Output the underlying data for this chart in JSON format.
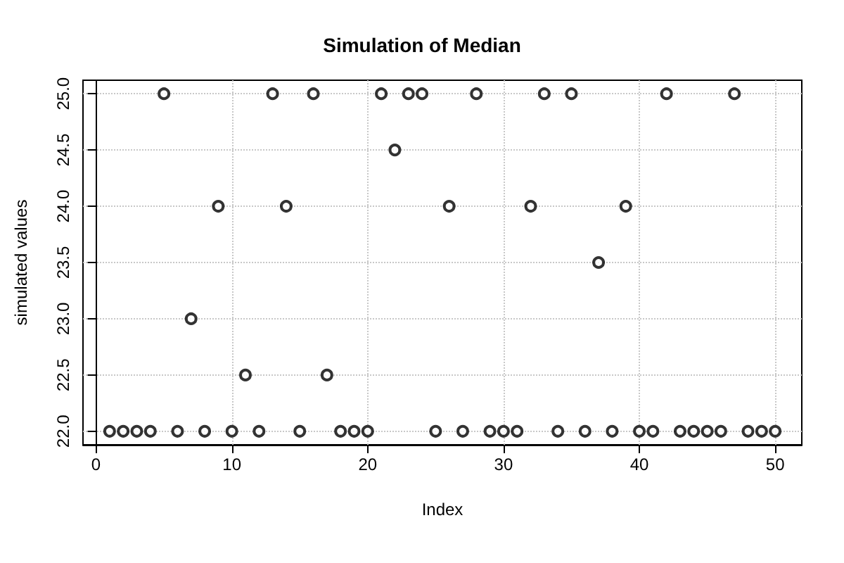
{
  "chart_data": {
    "type": "scatter",
    "title": "Simulation of Median",
    "xlabel": "Index",
    "ylabel": "simulated values",
    "x": [
      1,
      2,
      3,
      4,
      5,
      6,
      7,
      8,
      9,
      10,
      11,
      12,
      13,
      14,
      15,
      16,
      17,
      18,
      19,
      20,
      21,
      22,
      23,
      24,
      25,
      26,
      27,
      28,
      29,
      30,
      31,
      32,
      33,
      34,
      35,
      36,
      37,
      38,
      39,
      40,
      41,
      42,
      43,
      44,
      45,
      46,
      47,
      48,
      49,
      50
    ],
    "values": [
      22,
      22,
      22,
      22,
      25,
      22,
      23,
      22,
      24,
      22,
      22.5,
      22,
      25,
      24,
      22,
      25,
      22.5,
      22,
      22,
      22,
      25,
      24.5,
      25,
      25,
      22,
      24,
      22,
      25,
      22,
      22,
      22,
      24,
      25,
      22,
      25,
      22,
      23.5,
      22,
      24,
      22,
      22,
      25,
      22,
      22,
      22,
      22,
      25,
      22,
      22,
      22
    ],
    "color": "#000000",
    "marker": "circle",
    "grid": true,
    "xlim": [
      -0.96,
      51.96
    ],
    "xticks": [
      0,
      10,
      20,
      30,
      40,
      50
    ],
    "ylim": [
      21.88,
      25.12
    ],
    "yticks": [
      {
        "value": 22,
        "label": "22.0"
      },
      {
        "value": 22.5,
        "label": "22.5"
      },
      {
        "value": 23,
        "label": "23.0"
      },
      {
        "value": 23.5,
        "label": "23.5"
      },
      {
        "value": 24,
        "label": "24.0"
      },
      {
        "value": 24.5,
        "label": "24.5"
      },
      {
        "value": 25,
        "label": "25.0"
      }
    ]
  }
}
